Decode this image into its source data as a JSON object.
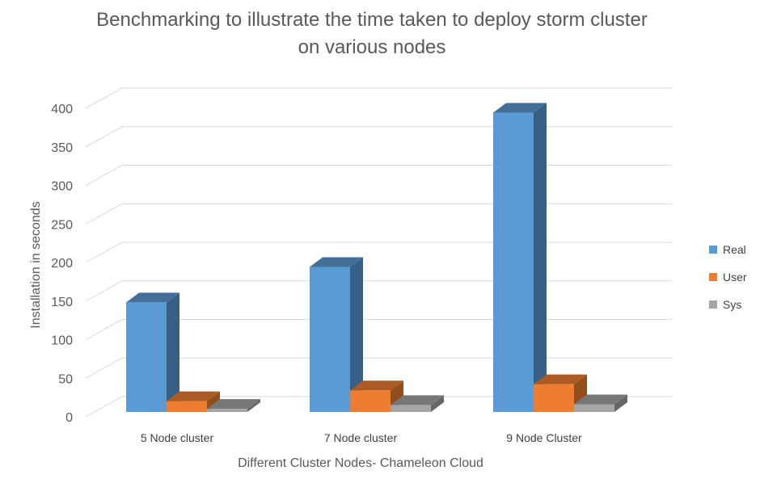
{
  "chart_data": {
    "type": "bar",
    "title_line1": "Benchmarking to illustrate the time taken to deploy storm cluster",
    "title_line2": "on various nodes",
    "xlabel": "Different Cluster Nodes- Chameleon Cloud",
    "ylabel": "Installation in seconds",
    "y_ticks": [
      "0",
      "50",
      "100",
      "150",
      "200",
      "250",
      "300",
      "350",
      "400"
    ],
    "ylim": [
      0,
      400
    ],
    "categories": [
      "5 Node cluster",
      "7 Node cluster",
      "9 Node Cluster"
    ],
    "series": [
      {
        "name": "Real",
        "color": "#5B9BD5",
        "values": [
          142,
          188,
          388
        ]
      },
      {
        "name": "User",
        "color": "#ED7D31",
        "values": [
          14,
          28,
          36
        ]
      },
      {
        "name": "Sys",
        "color": "#A5A5A5",
        "values": [
          4,
          9,
          10
        ]
      }
    ],
    "legend_position": "right",
    "grid": true,
    "style": "3d-clustered-column"
  }
}
